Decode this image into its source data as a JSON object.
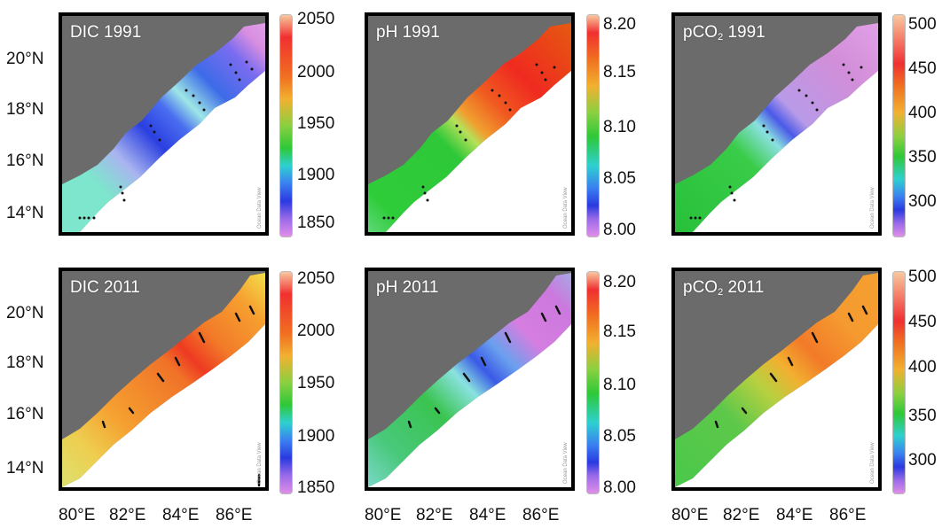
{
  "y_axis": {
    "top_labels": [
      "20°N",
      "18°N",
      "16°N",
      "14°N"
    ],
    "bottom_labels": [
      "20°N",
      "18°N",
      "16°N",
      "14°N"
    ]
  },
  "x_axis": {
    "labels": [
      "80°E",
      "82°E",
      "84°E",
      "86°E"
    ]
  },
  "colorbars": {
    "dic": {
      "labels": [
        "2050",
        "2000",
        "1950",
        "1900",
        "1850"
      ],
      "range": [
        1840,
        2055
      ],
      "unit": ""
    },
    "ph": {
      "labels": [
        "8.20",
        "8.15",
        "8.10",
        "8.05",
        "8.00"
      ],
      "range": [
        7.98,
        8.21
      ]
    },
    "pco2": {
      "labels": [
        "500",
        "450",
        "400",
        "350",
        "300"
      ],
      "range": [
        250,
        510
      ]
    }
  },
  "panels": [
    {
      "id": "dic-1991",
      "title_main": "DIC 1991",
      "title_pre": "",
      "title_sub": "",
      "title_post": ""
    },
    {
      "id": "ph-1991",
      "title_main": "pH 1991",
      "title_pre": "",
      "title_sub": "",
      "title_post": ""
    },
    {
      "id": "pco2-1991",
      "title_main": "",
      "title_pre": "pCO",
      "title_sub": "2",
      "title_post": " 1991"
    },
    {
      "id": "dic-2011",
      "title_main": "DIC 2011",
      "title_pre": "",
      "title_sub": "",
      "title_post": ""
    },
    {
      "id": "ph-2011",
      "title_main": "pH 2011",
      "title_pre": "",
      "title_sub": "",
      "title_post": ""
    },
    {
      "id": "pco2-2011",
      "title_main": "",
      "title_pre": "pCO",
      "title_sub": "2",
      "title_post": " 2011"
    }
  ],
  "watermark": "Ocean Data View",
  "colors": {
    "land": "#6b6b6b",
    "frame": "#000000"
  }
}
